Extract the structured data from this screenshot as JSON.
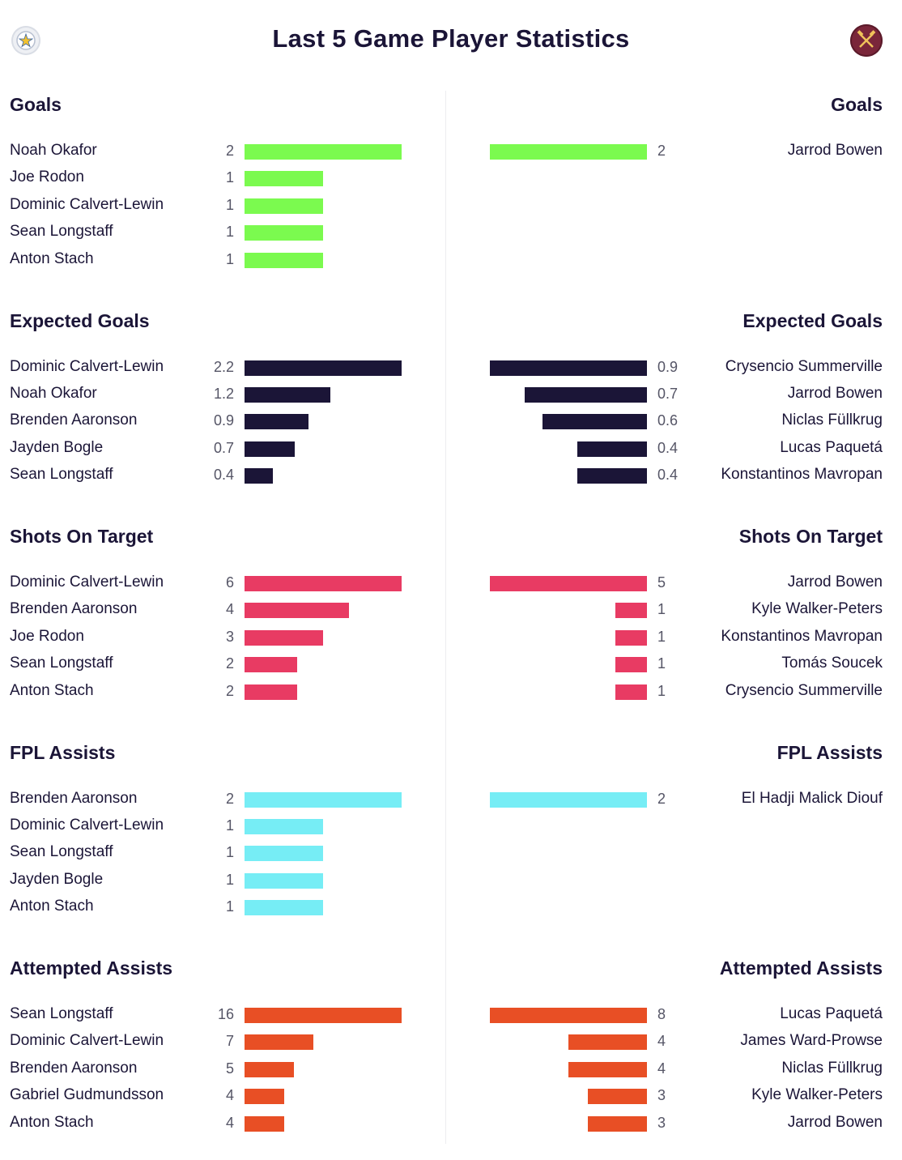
{
  "title": "Last 5 Game Player Statistics",
  "teams": {
    "left": {
      "crest_icon": "leicester-crest-icon",
      "color": "#3a64a3"
    },
    "right": {
      "crest_icon": "west-ham-crest-icon",
      "color": "#7a263a"
    }
  },
  "chart_data": {
    "type": "bar",
    "orientation": "horizontal",
    "panels": [
      {
        "title": "Goals",
        "color": "#7bfa4f",
        "left": {
          "names": [
            "Noah Okafor",
            "Joe Rodon",
            "Dominic Calvert-Lewin",
            "Sean Longstaff",
            "Anton Stach"
          ],
          "values": [
            "2",
            "1",
            "1",
            "1",
            "1"
          ]
        },
        "right": {
          "names": [
            "Jarrod Bowen"
          ],
          "values": [
            "2"
          ]
        }
      },
      {
        "title": "Expected Goals",
        "color": "#1b1537",
        "left": {
          "names": [
            "Dominic Calvert-Lewin",
            "Noah Okafor",
            "Brenden Aaronson",
            "Jayden Bogle",
            "Sean Longstaff"
          ],
          "values": [
            "2.2",
            "1.2",
            "0.9",
            "0.7",
            "0.4"
          ]
        },
        "right": {
          "names": [
            "Crysencio Summerville",
            "Jarrod Bowen",
            "Niclas Füllkrug",
            "Lucas Paquetá",
            "Konstantinos Mavropan"
          ],
          "values": [
            "0.9",
            "0.7",
            "0.6",
            "0.4",
            "0.4"
          ]
        }
      },
      {
        "title": "Shots On Target",
        "color": "#e83b63",
        "left": {
          "names": [
            "Dominic Calvert-Lewin",
            "Brenden Aaronson",
            "Joe Rodon",
            "Sean Longstaff",
            "Anton Stach"
          ],
          "values": [
            "6",
            "4",
            "3",
            "2",
            "2"
          ]
        },
        "right": {
          "names": [
            "Jarrod Bowen",
            "Kyle Walker-Peters",
            "Konstantinos Mavropan",
            "Tomás Soucek",
            "Crysencio Summerville"
          ],
          "values": [
            "5",
            "1",
            "1",
            "1",
            "1"
          ]
        }
      },
      {
        "title": "FPL Assists",
        "color": "#76edf5",
        "left": {
          "names": [
            "Brenden Aaronson",
            "Dominic Calvert-Lewin",
            "Sean Longstaff",
            "Jayden Bogle",
            "Anton Stach"
          ],
          "values": [
            "2",
            "1",
            "1",
            "1",
            "1"
          ]
        },
        "right": {
          "names": [
            "El Hadji Malick Diouf"
          ],
          "values": [
            "2"
          ]
        }
      },
      {
        "title": "Attempted Assists",
        "color": "#e84f25",
        "left": {
          "names": [
            "Sean Longstaff",
            "Dominic Calvert-Lewin",
            "Brenden Aaronson",
            "Gabriel Gudmundsson",
            "Anton Stach"
          ],
          "values": [
            "16",
            "7",
            "5",
            "4",
            "4"
          ]
        },
        "right": {
          "names": [
            "Lucas Paquetá",
            "James Ward-Prowse",
            "Niclas Füllkrug",
            "Kyle Walker-Peters",
            "Jarrod Bowen"
          ],
          "values": [
            "8",
            "4",
            "4",
            "3",
            "3"
          ]
        }
      }
    ]
  }
}
